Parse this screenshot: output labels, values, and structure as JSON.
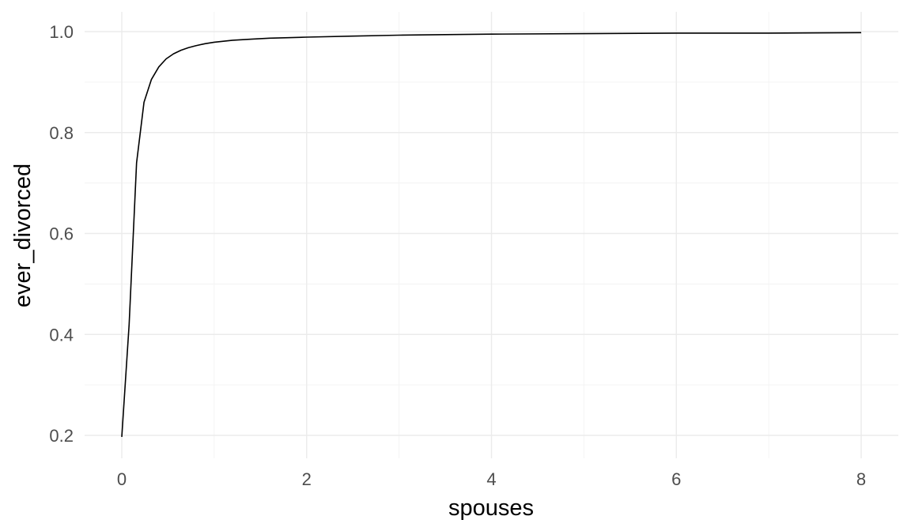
{
  "chart_data": {
    "type": "line",
    "title": "",
    "xlabel": "spouses",
    "ylabel": "ever_divorced",
    "xlim": [
      0,
      8
    ],
    "ylim": [
      0.2,
      1.0
    ],
    "x_ticks": [
      "0",
      "2",
      "4",
      "6",
      "8"
    ],
    "y_ticks": [
      "0.2",
      "0.4",
      "0.6",
      "0.8",
      "1.0"
    ],
    "grid": true,
    "series": [
      {
        "color": "#000000",
        "x": [
          0.0,
          0.08,
          0.16,
          0.24,
          0.32,
          0.4,
          0.48,
          0.56,
          0.64,
          0.72,
          0.8,
          0.9,
          1.0,
          1.2,
          1.4,
          1.6,
          1.8,
          2.0,
          2.5,
          3.0,
          3.5,
          4.0,
          5.0,
          6.0,
          7.0,
          8.0
        ],
        "y": [
          0.197,
          0.42,
          0.74,
          0.86,
          0.905,
          0.93,
          0.946,
          0.956,
          0.963,
          0.968,
          0.972,
          0.976,
          0.979,
          0.983,
          0.985,
          0.987,
          0.988,
          0.989,
          0.991,
          0.993,
          0.994,
          0.995,
          0.996,
          0.997,
          0.997,
          0.998
        ]
      }
    ]
  }
}
